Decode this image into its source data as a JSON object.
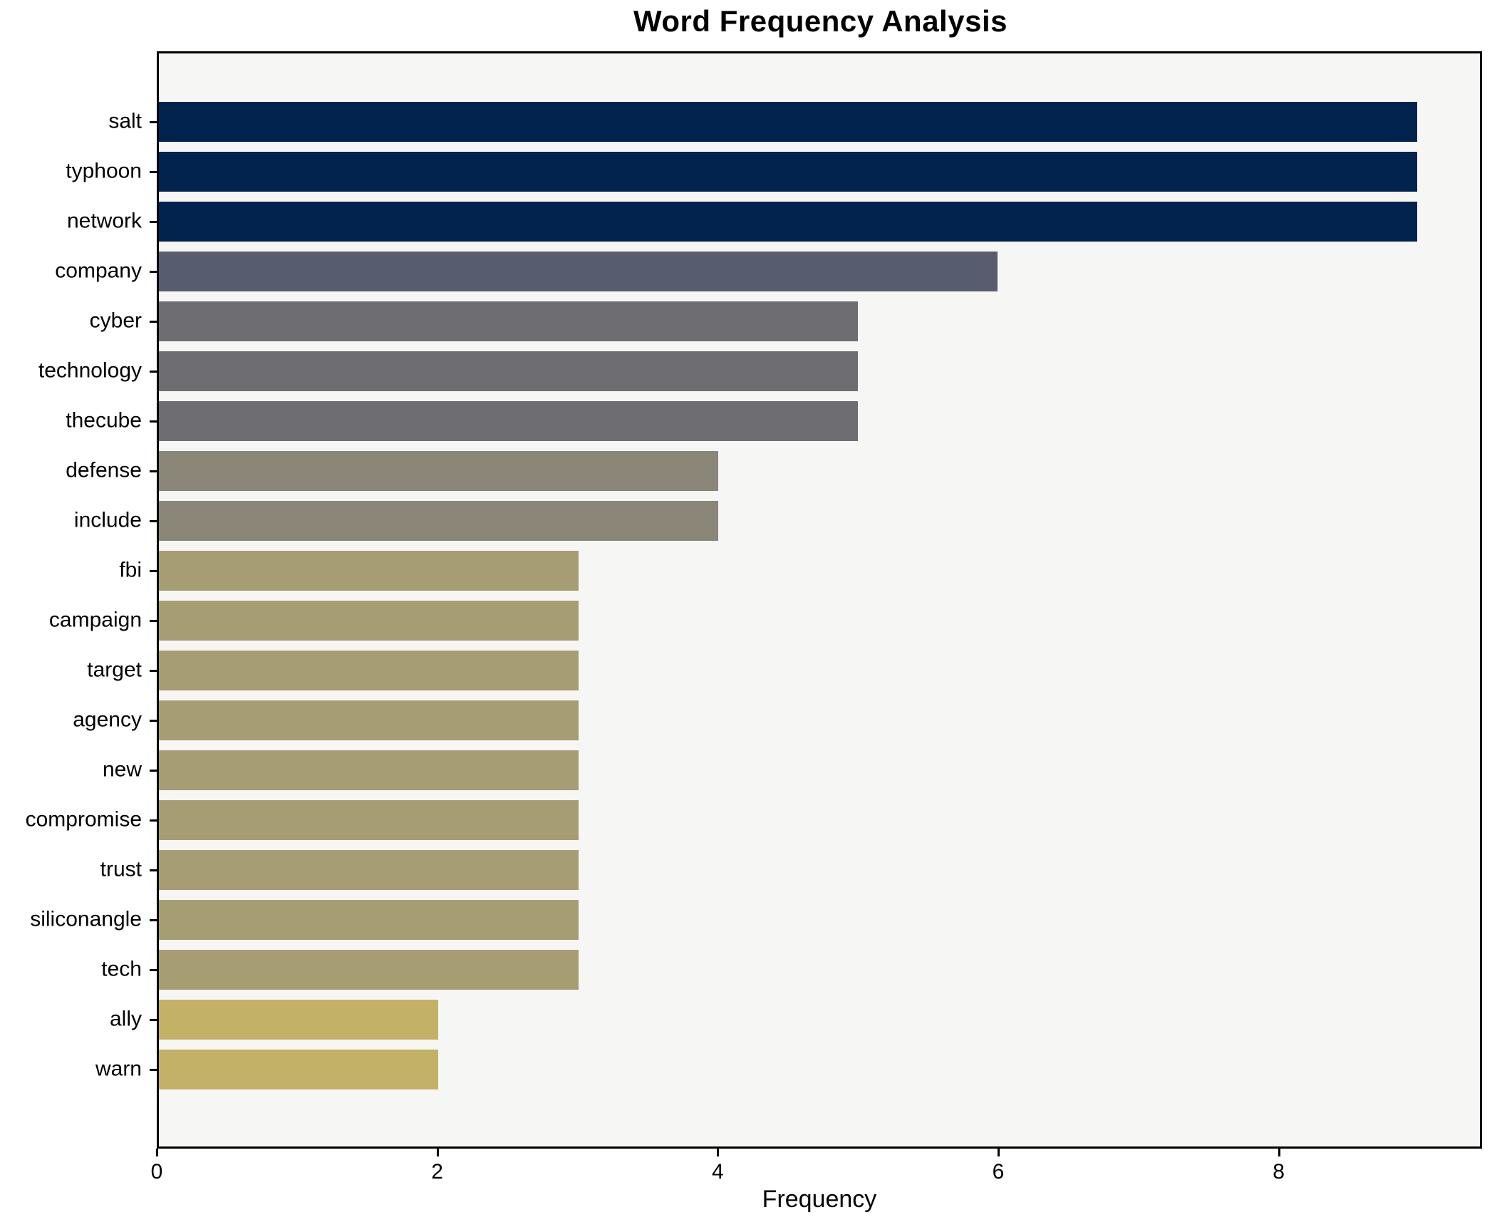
{
  "chart_data": {
    "type": "bar",
    "orientation": "horizontal",
    "title": "Word Frequency Analysis",
    "xlabel": "Frequency",
    "ylabel": "",
    "categories": [
      "salt",
      "typhoon",
      "network",
      "company",
      "cyber",
      "technology",
      "thecube",
      "defense",
      "include",
      "fbi",
      "campaign",
      "target",
      "agency",
      "new",
      "compromise",
      "trust",
      "siliconangle",
      "tech",
      "ally",
      "warn"
    ],
    "values": [
      9,
      9,
      9,
      6,
      5,
      5,
      5,
      4,
      4,
      3,
      3,
      3,
      3,
      3,
      3,
      3,
      3,
      3,
      2,
      2
    ],
    "bar_colors": [
      "#02234e",
      "#02234e",
      "#02234e",
      "#575d6e",
      "#6e6e72",
      "#6e6e72",
      "#6e6e72",
      "#8a8779",
      "#8a8779",
      "#a69d73",
      "#a69d73",
      "#a69d73",
      "#a69d73",
      "#a69d73",
      "#a69d73",
      "#a69d73",
      "#a69d73",
      "#a69d73",
      "#c3b266",
      "#c3b266"
    ],
    "color_by_value": {
      "9": "#02234e",
      "6": "#575d6e",
      "5": "#6e6e72",
      "4": "#8a8779",
      "3": "#a69d73",
      "2": "#c3b266"
    },
    "xticks": [
      0,
      2,
      4,
      6,
      8
    ],
    "xlim": [
      0,
      9.45
    ],
    "grid": false,
    "legend": null,
    "plot_background": "#f6f6f4",
    "figure_background": "#ffffff",
    "text_color": "#000000"
  }
}
